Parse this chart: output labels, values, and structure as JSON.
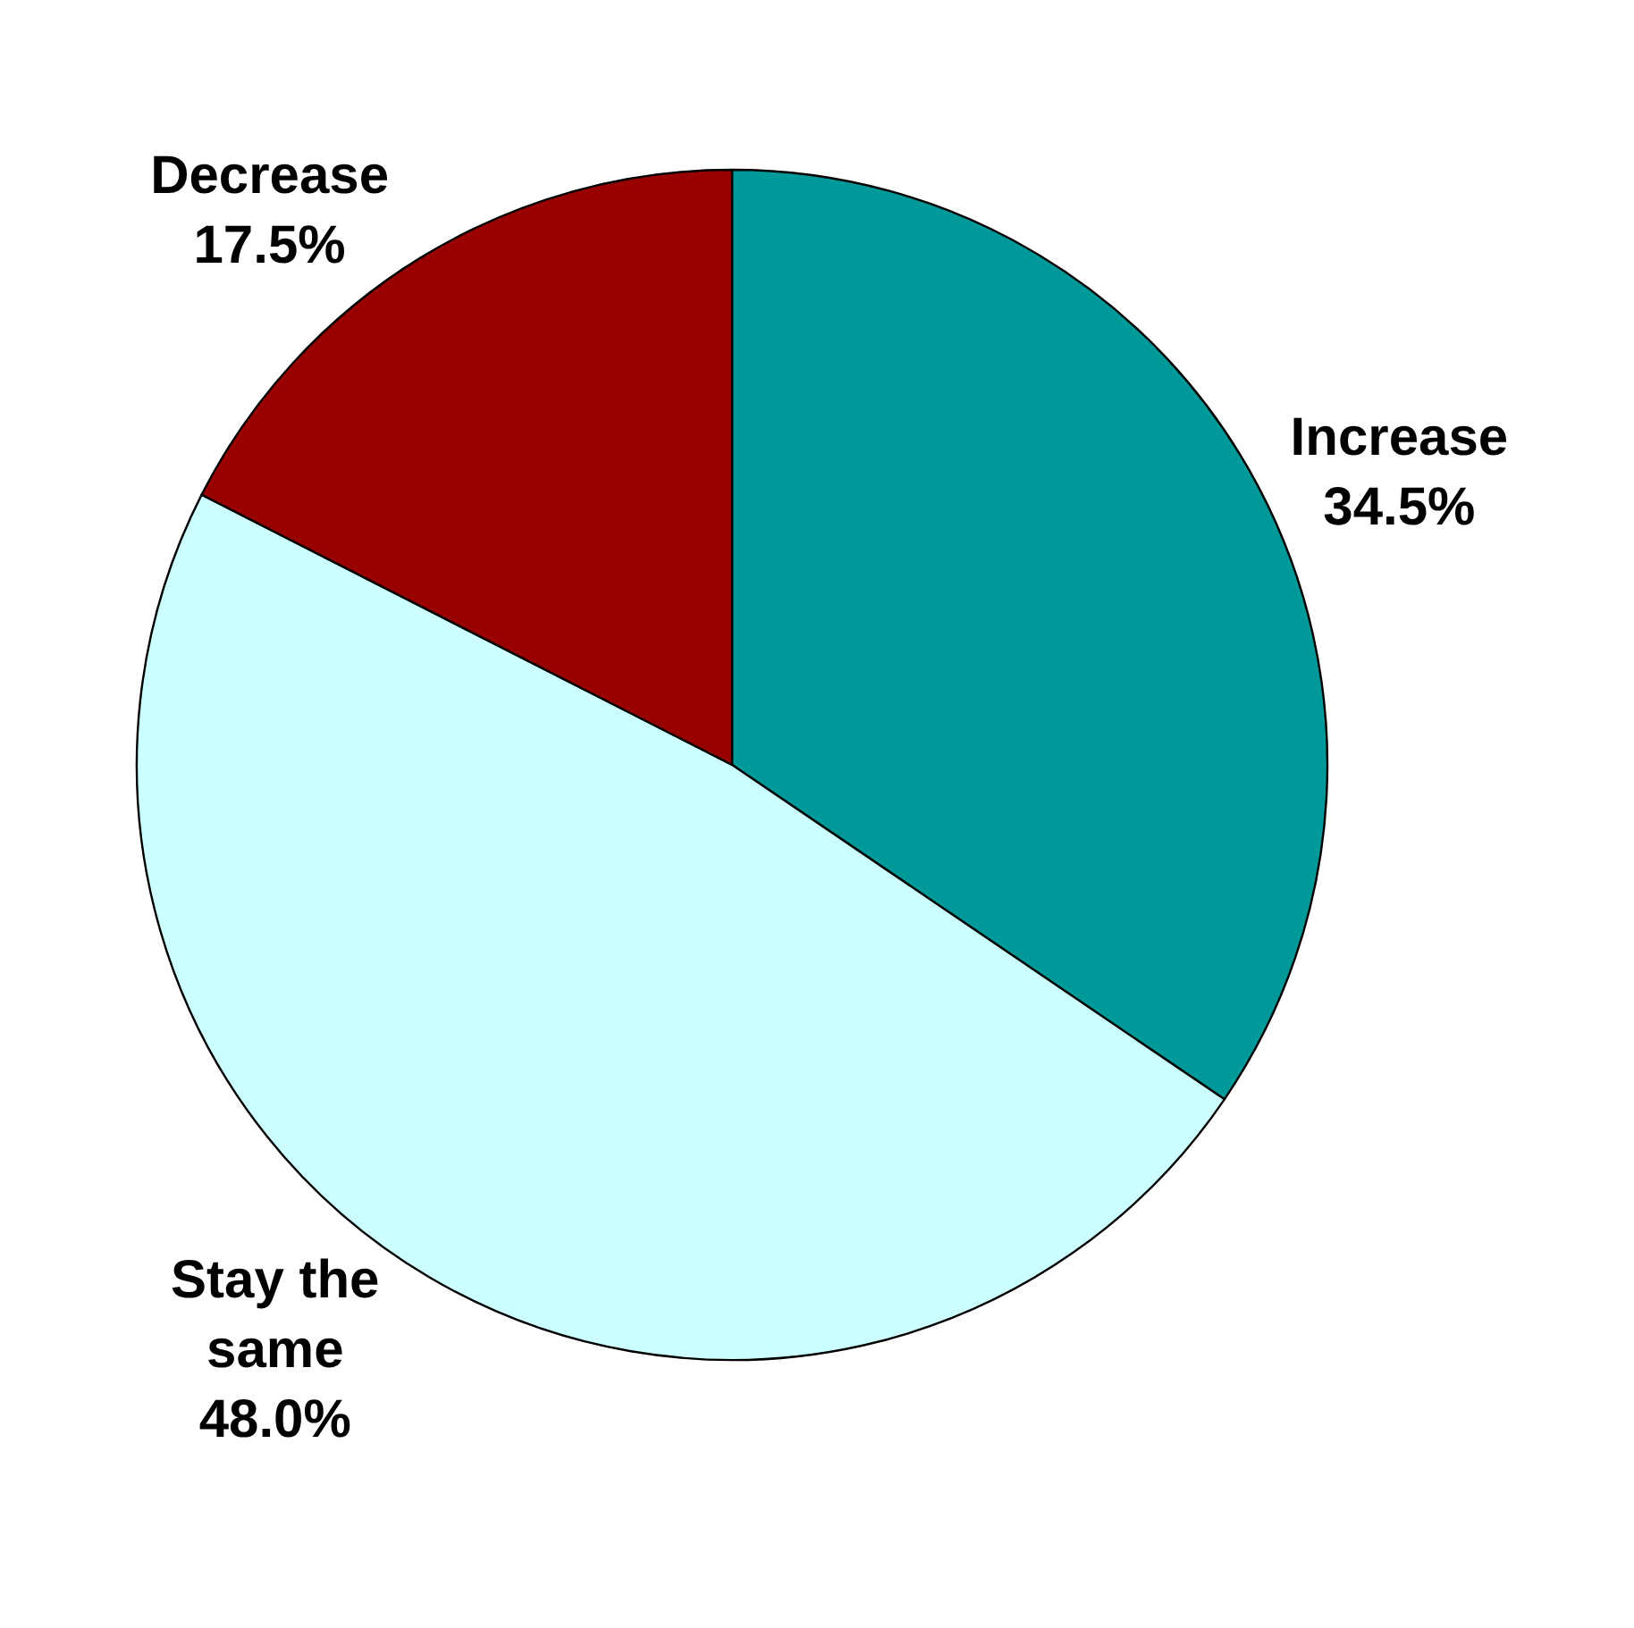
{
  "chart_data": {
    "type": "pie",
    "categories": [
      "Increase",
      "Stay the same",
      "Decrease"
    ],
    "values": [
      34.5,
      48.0,
      17.5
    ],
    "colors": [
      "#009999",
      "#ccffff",
      "#990000"
    ],
    "value_labels": [
      "34.5%",
      "48.0%",
      "17.5%"
    ],
    "legend": false
  }
}
